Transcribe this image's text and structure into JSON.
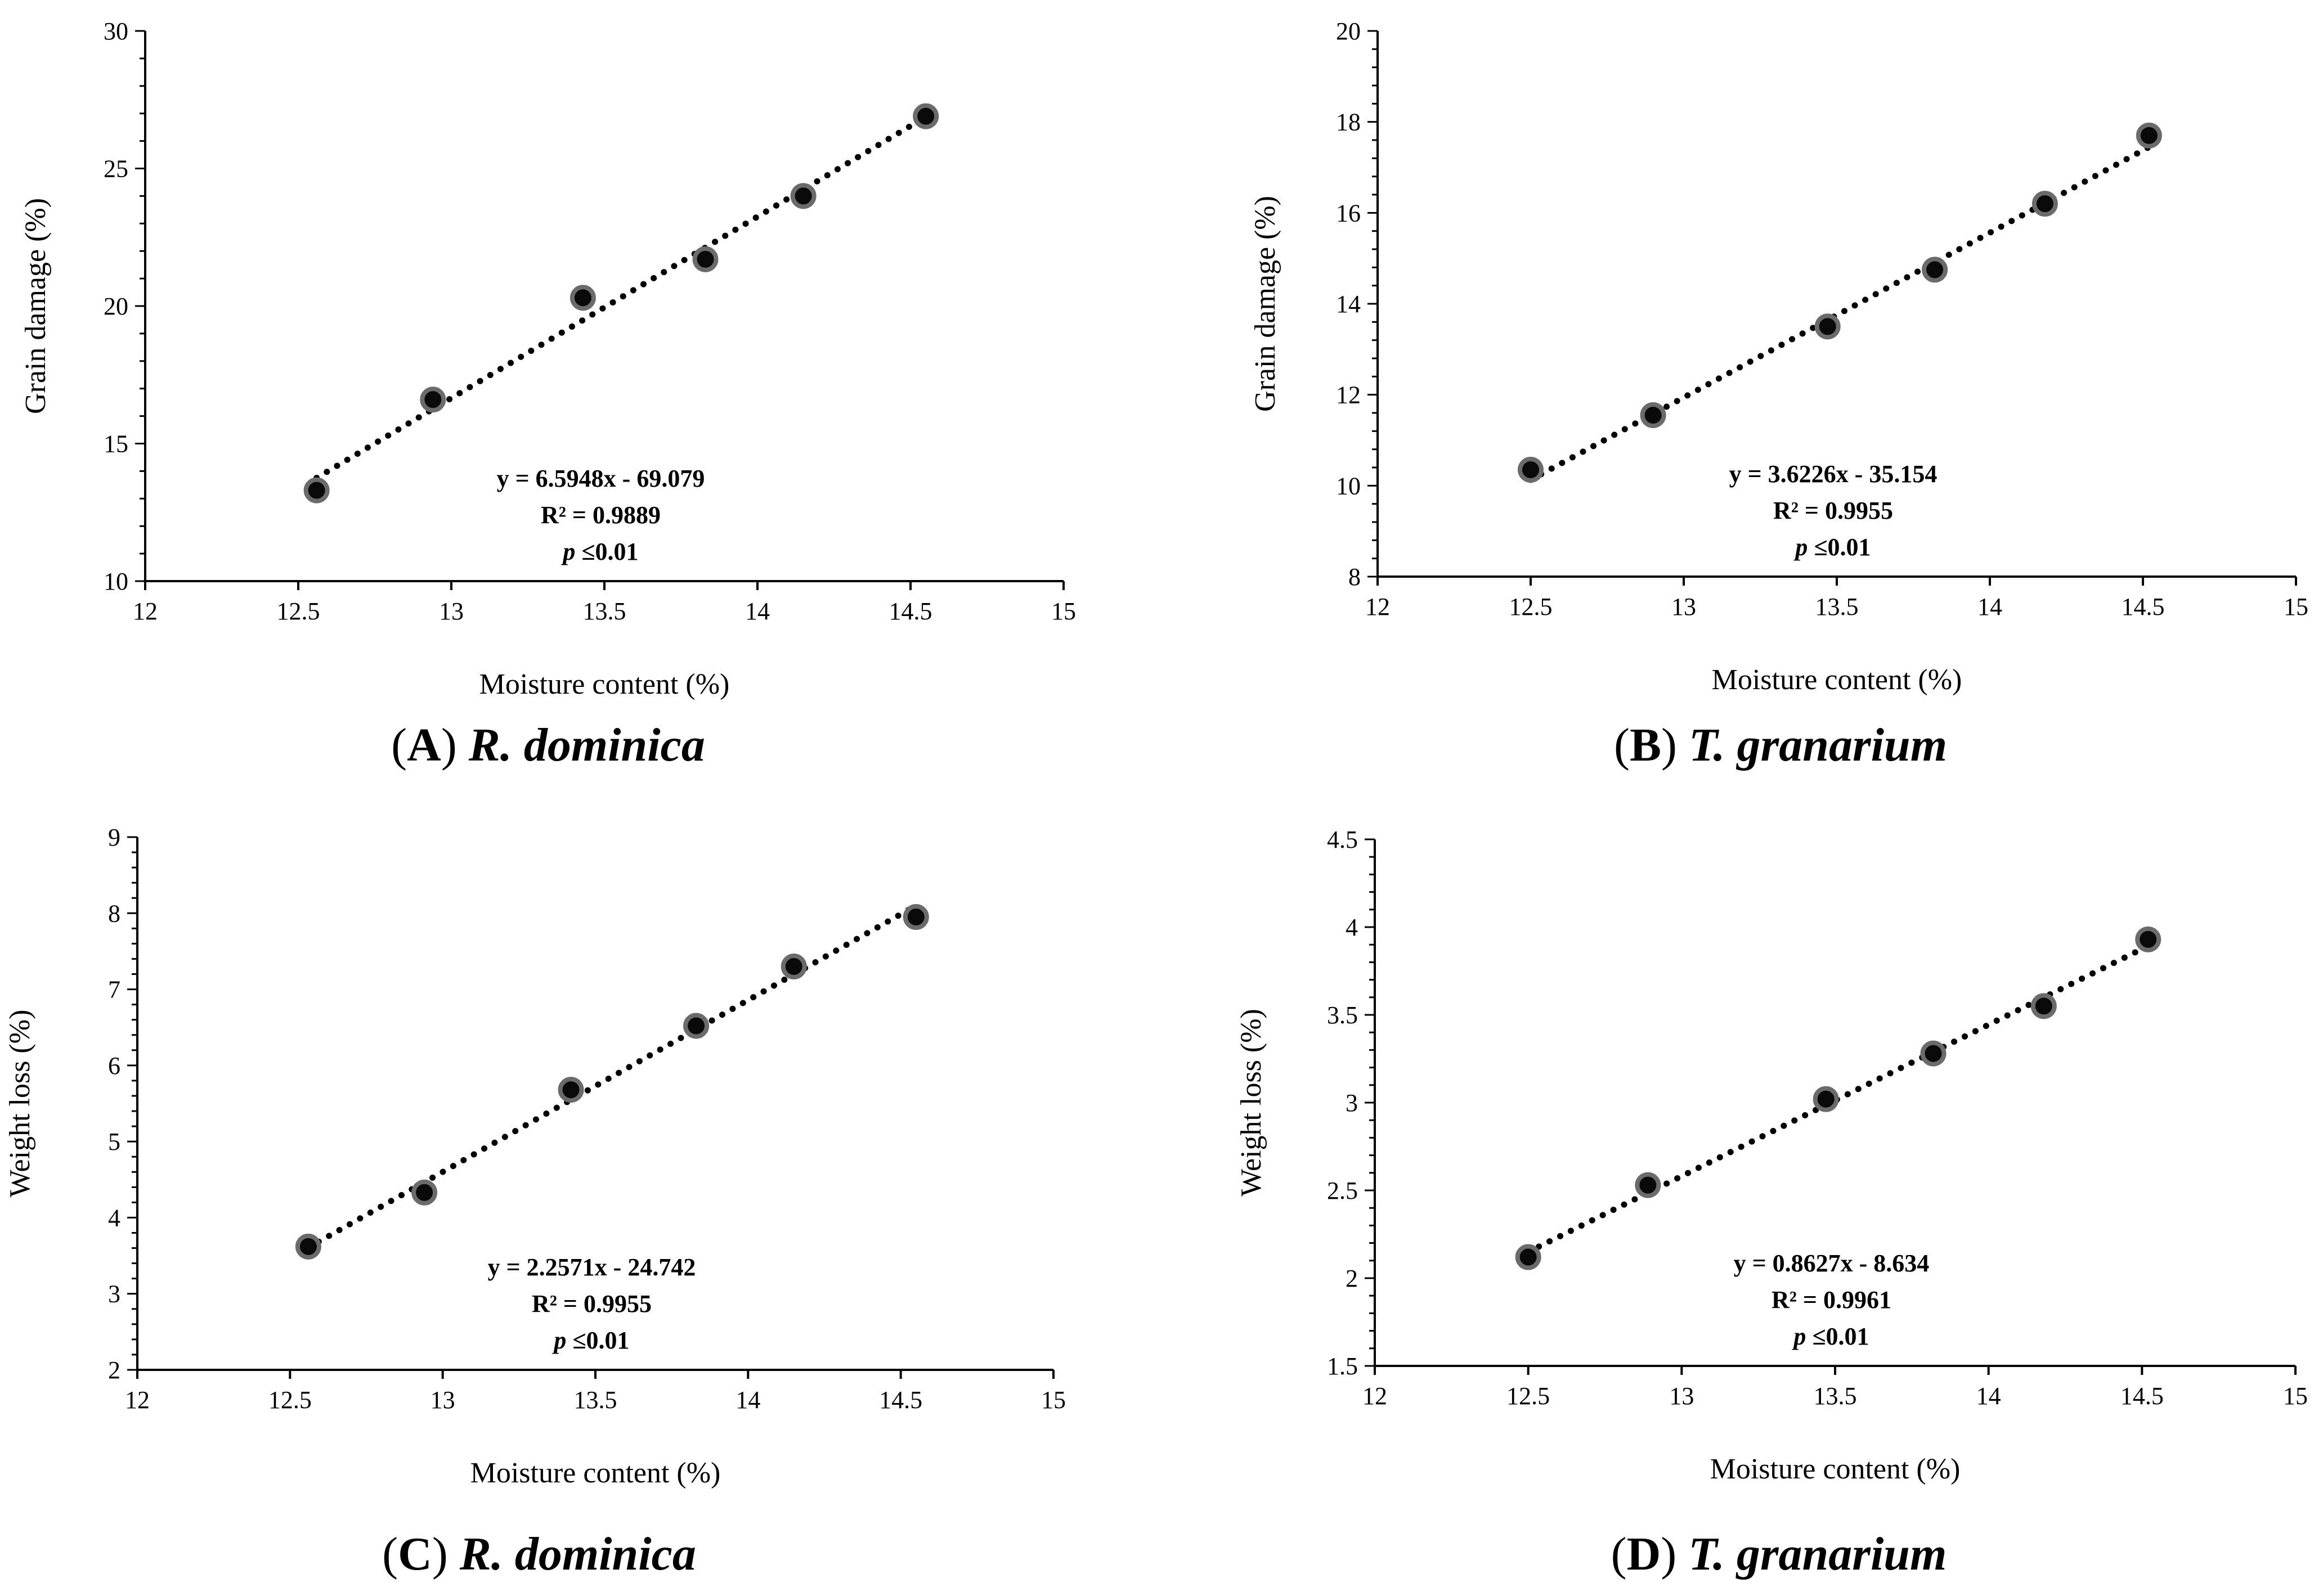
{
  "chart_data": [
    {
      "type": "scatter",
      "panel": "A",
      "xlabel": "Moisture content (%)",
      "ylabel": "Grain damage (%)",
      "xlim": [
        12,
        15
      ],
      "ylim": [
        10,
        30
      ],
      "xticks": [
        12,
        12.5,
        13,
        13.5,
        14,
        14.5,
        15
      ],
      "xtick_labels": [
        "12",
        "12.5",
        "13",
        "13.5",
        "14",
        "14.5",
        "15"
      ],
      "yticks": [
        10,
        15,
        20,
        25,
        30
      ],
      "ytick_labels": [
        "10",
        "15",
        "20",
        "25",
        "30"
      ],
      "x": [
        12.56,
        12.94,
        13.43,
        13.83,
        14.15,
        14.55
      ],
      "y": [
        13.3,
        16.6,
        20.3,
        21.7,
        24.0,
        26.9
      ],
      "trendline": {
        "slope": 6.5948,
        "intercept": -69.079
      },
      "equation": "y = 6.5948x - 69.079",
      "r2": "R² = 0.9889",
      "p_symbol": "p",
      "p_value": " ≤0.01",
      "caption": {
        "letter": "A",
        "species": "R. dominica"
      }
    },
    {
      "type": "scatter",
      "panel": "B",
      "xlabel": "Moisture content (%)",
      "ylabel": "Grain damage (%)",
      "xlim": [
        12,
        15
      ],
      "ylim": [
        8,
        20
      ],
      "xticks": [
        12,
        12.5,
        13,
        13.5,
        14,
        14.5,
        15
      ],
      "xtick_labels": [
        "12",
        "12.5",
        "13",
        "13.5",
        "14",
        "14.5",
        "15"
      ],
      "yticks": [
        8,
        10,
        12,
        14,
        16,
        18,
        20
      ],
      "ytick_labels": [
        "8",
        "10",
        "12",
        "14",
        "16",
        "18",
        "20"
      ],
      "x": [
        12.5,
        12.9,
        13.47,
        13.82,
        14.18,
        14.52
      ],
      "y": [
        10.35,
        11.55,
        13.5,
        14.75,
        16.2,
        17.7
      ],
      "trendline": {
        "slope": 3.6226,
        "intercept": -35.154
      },
      "equation": "y = 3.6226x - 35.154",
      "r2": "R² = 0.9955",
      "p_symbol": "p",
      "p_value": " ≤0.01",
      "caption": {
        "letter": "B",
        "species": "T. granarium"
      }
    },
    {
      "type": "scatter",
      "panel": "C",
      "xlabel": "Moisture content (%)",
      "ylabel": "Weight loss (%)",
      "xlim": [
        12,
        15
      ],
      "ylim": [
        2,
        9
      ],
      "xticks": [
        12,
        12.5,
        13,
        13.5,
        14,
        14.5,
        15
      ],
      "xtick_labels": [
        "12",
        "12.5",
        "13",
        "13.5",
        "14",
        "14.5",
        "15"
      ],
      "yticks": [
        2,
        3,
        4,
        5,
        6,
        7,
        8,
        9
      ],
      "ytick_labels": [
        "2",
        "3",
        "4",
        "5",
        "6",
        "7",
        "8",
        "9"
      ],
      "x": [
        12.56,
        12.94,
        13.42,
        13.83,
        14.15,
        14.55
      ],
      "y": [
        3.62,
        4.33,
        5.68,
        6.52,
        7.3,
        7.95
      ],
      "trendline": {
        "slope": 2.2571,
        "intercept": -24.742
      },
      "equation": "y = 2.2571x - 24.742",
      "r2": "R² = 0.9955",
      "p_symbol": "p",
      "p_value": " ≤0.01",
      "caption": {
        "letter": "C",
        "species": "R. dominica"
      }
    },
    {
      "type": "scatter",
      "panel": "D",
      "xlabel": "Moisture content (%)",
      "ylabel": "Weight loss (%)",
      "xlim": [
        12,
        15
      ],
      "ylim": [
        1.5,
        4.5
      ],
      "xticks": [
        12,
        12.5,
        13,
        13.5,
        14,
        14.5,
        15
      ],
      "xtick_labels": [
        "12",
        "12.5",
        "13",
        "13.5",
        "14",
        "14.5",
        "15"
      ],
      "yticks": [
        1.5,
        2,
        2.5,
        3,
        3.5,
        4,
        4.5
      ],
      "ytick_labels": [
        "1.5",
        "2",
        "2.5",
        "3",
        "3.5",
        "4",
        "4.5"
      ],
      "x": [
        12.5,
        12.89,
        13.47,
        13.82,
        14.18,
        14.52
      ],
      "y": [
        2.12,
        2.53,
        3.02,
        3.28,
        3.55,
        3.93
      ],
      "trendline": {
        "slope": 0.8627,
        "intercept": -8.634
      },
      "equation": "y = 0.8627x - 8.634",
      "r2": "R² = 0.9961",
      "p_symbol": "p",
      "p_value": " ≤0.01",
      "caption": {
        "letter": "D",
        "species": "T. granarium"
      }
    }
  ]
}
